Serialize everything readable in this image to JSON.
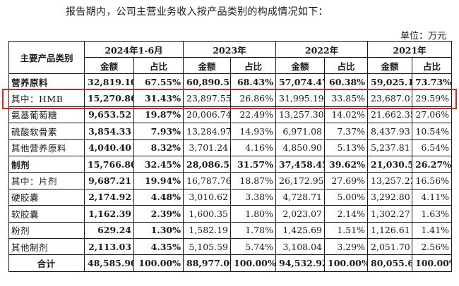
{
  "intro_text": "报告期内，公司主营业务收入按产品类别的构成情况如下：",
  "unit_text": "单位：万元",
  "header": {
    "category_label": "主要产品类别",
    "periods": [
      "2024年1-6月",
      "2023年",
      "2022年",
      "2021年"
    ],
    "amount_label": "金额",
    "share_label": "占比"
  },
  "rows": [
    {
      "name": "营养原料",
      "values": [
        "32,819.10",
        "67.55%",
        "60,890.50",
        "68.43%",
        "57,074.47",
        "60.38%",
        "59,025.10",
        "73.73%"
      ],
      "style": "bold"
    },
    {
      "name": "其中：HMB",
      "values": [
        "15,270.86",
        "31.43%",
        "23,897.55",
        "26.86%",
        "31,995.19",
        "33.85%",
        "23,687.01",
        "29.59%"
      ],
      "style": "first2bold"
    },
    {
      "name": "氨基葡萄糖",
      "values": [
        "9,653.52",
        "19.87%",
        "20,006.74",
        "22.49%",
        "13,257.30",
        "14.02%",
        "21,662.35",
        "27.06%"
      ],
      "style": "first2bold"
    },
    {
      "name": "硫酸软骨素",
      "values": [
        "3,854.33",
        "7.93%",
        "13,284.97",
        "14.93%",
        "6,971.08",
        "7.37%",
        "8,437.93",
        "10.54%"
      ],
      "style": "first2bold"
    },
    {
      "name": "其他营养原料",
      "values": [
        "4,040.40",
        "8.32%",
        "3,701.24",
        "4.16%",
        "4,850.90",
        "5.13%",
        "5,237.81",
        "6.54%"
      ],
      "style": "first2bold"
    },
    {
      "name": "制剂",
      "values": [
        "15,766.80",
        "32.45%",
        "28,086.51",
        "31.57%",
        "37,458.45",
        "39.62%",
        "21,030.59",
        "26.27%"
      ],
      "style": "bold"
    },
    {
      "name": "其中：片剂",
      "values": [
        "9,687.21",
        "19.94%",
        "16,787.76",
        "18.87%",
        "26,172.95",
        "27.69%",
        "13,257.22",
        "16.56%"
      ],
      "style": "first2bold"
    },
    {
      "name": "硬胶囊",
      "values": [
        "2,174.92",
        "4.48%",
        "3,010.62",
        "3.38%",
        "4,728.71",
        "5.00%",
        "3,292.80",
        "4.11%"
      ],
      "style": "first2bold"
    },
    {
      "name": "软胶囊",
      "values": [
        "1,162.39",
        "2.39%",
        "1,600.35",
        "1.80%",
        "2,023.07",
        "2.14%",
        "1,302.27",
        "1.63%"
      ],
      "style": "first2bold"
    },
    {
      "name": "粉剂",
      "values": [
        "629.24",
        "1.30%",
        "1,582.19",
        "1.78%",
        "1,425.69",
        "1.51%",
        "1,126.61",
        "1.41%"
      ],
      "style": "first2bold"
    },
    {
      "name": "其他制剂",
      "values": [
        "2,113.03",
        "4.35%",
        "5,105.59",
        "5.74%",
        "3,108.04",
        "3.29%",
        "2,051.70",
        "2.56%"
      ],
      "style": "first2bold"
    },
    {
      "name": "合计",
      "values": [
        "48,585.90",
        "100.00%",
        "88,977.00",
        "100.00%",
        "94,532.92",
        "100.00%",
        "80,055.69",
        "100.00%"
      ],
      "style": "bold"
    }
  ],
  "highlight_color": "#e3201b"
}
